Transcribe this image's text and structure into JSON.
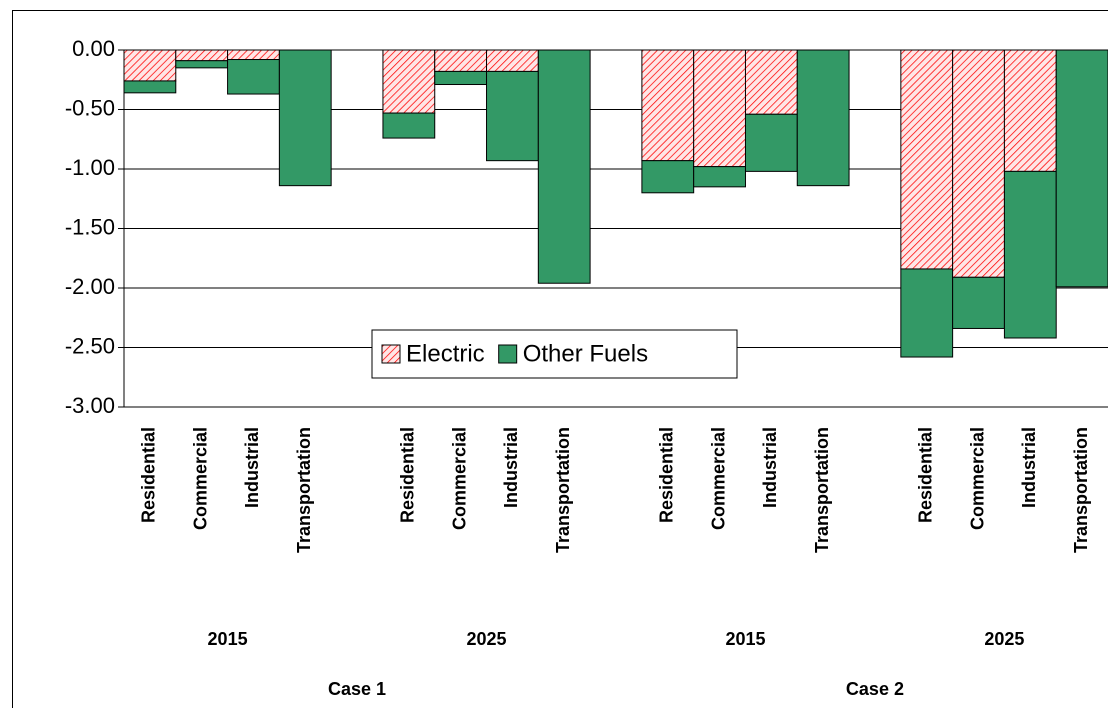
{
  "chart_data": {
    "type": "stacked-bar",
    "categories": [
      "Residential",
      "Commercial",
      "Industrial",
      "Transportation",
      "Residential",
      "Commercial",
      "Industrial",
      "Transportation",
      "Residential",
      "Commercial",
      "Industrial",
      "Transportation",
      "Residential",
      "Commercial",
      "Industrial",
      "Transportation"
    ],
    "year_labels": [
      "2015",
      "2025",
      "2015",
      "2025"
    ],
    "case_labels": [
      "Case 1",
      "Case 2"
    ],
    "series": [
      {
        "name": "Electric",
        "color": "#ff0000",
        "pattern": "hatch",
        "values": [
          -0.26,
          -0.09,
          -0.08,
          0,
          -0.53,
          -0.18,
          -0.18,
          0,
          -0.93,
          -0.98,
          -0.54,
          0,
          -1.84,
          -1.91,
          -1.02,
          0
        ]
      },
      {
        "name": "Other Fuels",
        "color": "#339966",
        "pattern": "solid",
        "values": [
          -0.1,
          -0.06,
          -0.29,
          -1.14,
          -0.21,
          -0.11,
          -0.75,
          -1.96,
          -0.27,
          -0.17,
          -0.48,
          -1.14,
          -0.74,
          -0.43,
          -1.4,
          -1.99
        ]
      }
    ],
    "ylim": [
      -3,
      0
    ],
    "yticks": [
      {
        "value": 0,
        "label": "0.00"
      },
      {
        "value": -0.5,
        "label": "-0.50"
      },
      {
        "value": -1,
        "label": "-1.00"
      },
      {
        "value": -1.5,
        "label": "-1.50"
      },
      {
        "value": -2,
        "label": "-2.00"
      },
      {
        "value": -2.5,
        "label": "-2.50"
      },
      {
        "value": -3,
        "label": "-3.00"
      }
    ],
    "grid": true,
    "legend": "lower center"
  }
}
